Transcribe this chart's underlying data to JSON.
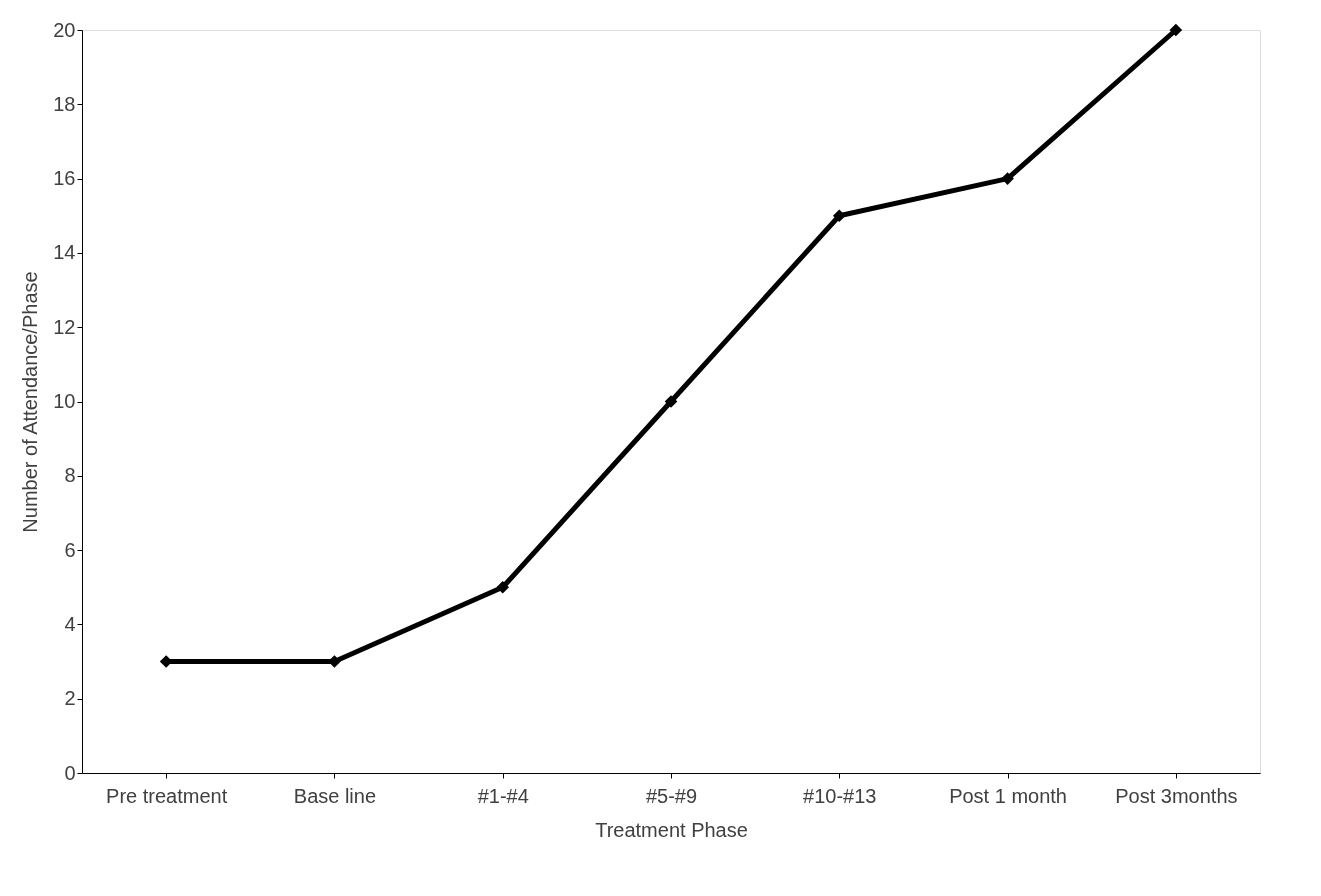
{
  "chart_data": {
    "type": "line",
    "xlabel": "Treatment Phase",
    "ylabel": "Number of Attendance/Phase",
    "categories": [
      "Pre treatment",
      "Base line",
      "#1-#4",
      "#5-#9",
      "#10-#13",
      "Post 1 month",
      "Post 3months"
    ],
    "series": [
      {
        "color": "#000000",
        "values": [
          3,
          3,
          5,
          10,
          15,
          16,
          20
        ]
      }
    ],
    "ylim": [
      0,
      20
    ],
    "yticks": [
      0,
      2,
      4,
      6,
      8,
      10,
      12,
      14,
      16,
      18,
      20
    ],
    "grid": false,
    "marker": "diamond",
    "line_style": "solid"
  }
}
